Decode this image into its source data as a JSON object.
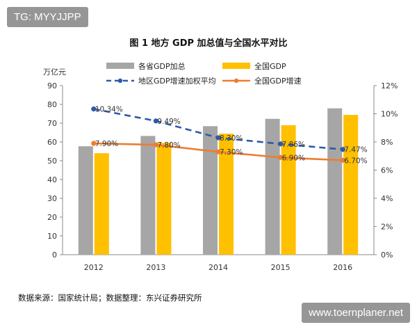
{
  "watermarks": {
    "top": "TG: MYYJJPP",
    "bottom": "www.toernplaner.net"
  },
  "source": "数据来源：国家统计局；数据整理：东兴证券研究所",
  "colors": {
    "provincial_bar": "#a6a6a6",
    "national_bar": "#ffc000",
    "provincial_line": "#2e5aa8",
    "national_line": "#ed7d31"
  },
  "chart_data": {
    "type": "bar",
    "title": "图 1 地方 GDP 加总值与全国水平对比",
    "left_unit": "万亿元",
    "categories": [
      "2012",
      "2013",
      "2014",
      "2015",
      "2016"
    ],
    "left_axis": {
      "min": 0,
      "max": 90,
      "ticks": [
        "0",
        "10",
        "20",
        "30",
        "40",
        "50",
        "60",
        "70",
        "80",
        "90"
      ]
    },
    "right_axis": {
      "min": 0,
      "max": 12,
      "ticks": [
        "0%",
        "2%",
        "4%",
        "6%",
        "8%",
        "10%",
        "12%"
      ]
    },
    "legend_position": "top",
    "bar_series": [
      {
        "name": "各省GDP加总",
        "values": [
          57.7,
          63.2,
          68.4,
          72.3,
          77.9
        ]
      },
      {
        "name": "全国GDP",
        "values": [
          54.0,
          59.5,
          64.4,
          68.9,
          74.4
        ]
      }
    ],
    "line_series": [
      {
        "name": "地区GDP增速加权平均",
        "style": "dashed",
        "values": [
          10.34,
          9.49,
          8.3,
          7.86,
          7.47
        ],
        "labels": [
          "10.34%",
          "9.49%",
          "8.30%",
          "7.86%",
          "7.47%"
        ]
      },
      {
        "name": "全国GDP增速",
        "style": "solid",
        "values": [
          7.9,
          7.8,
          7.3,
          6.9,
          6.7
        ],
        "labels": [
          "7.90%",
          "7.80%",
          "7.30%",
          "6.90%",
          "6.70%"
        ]
      }
    ]
  }
}
